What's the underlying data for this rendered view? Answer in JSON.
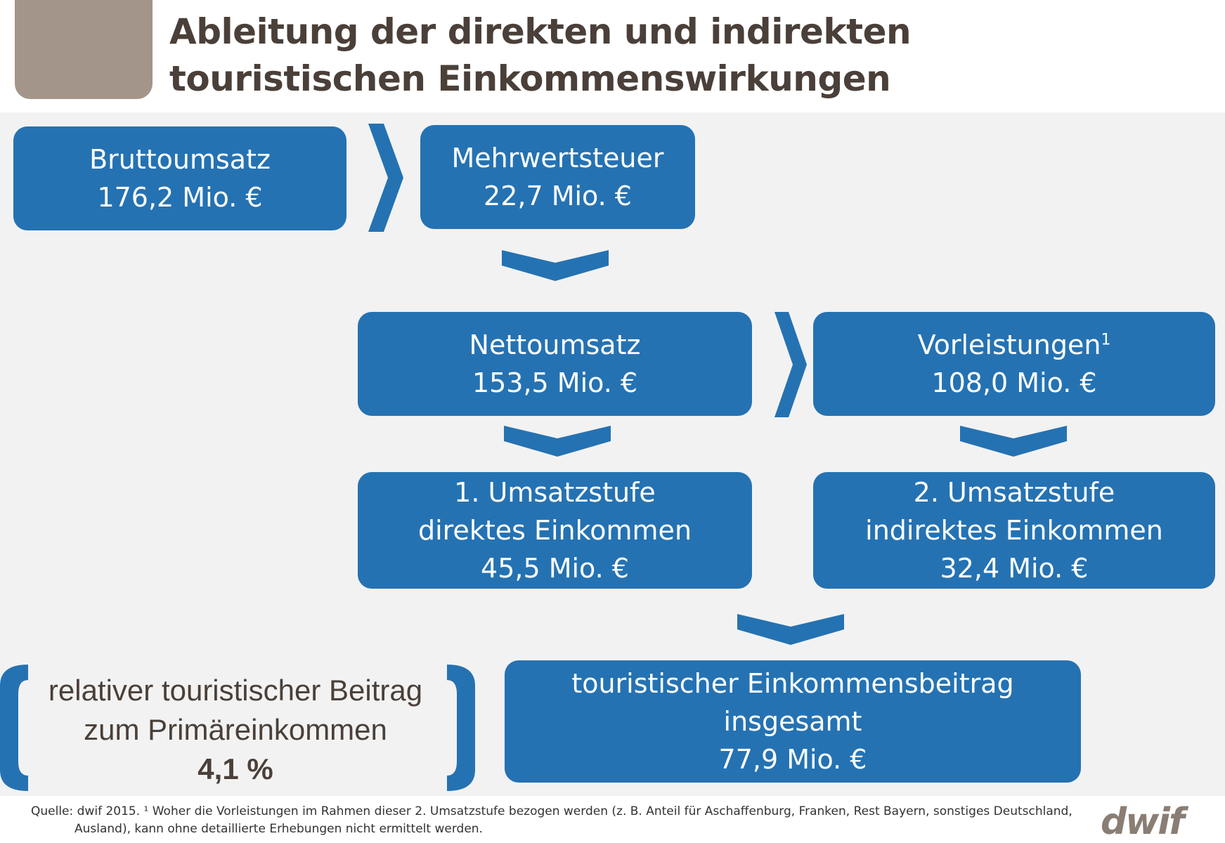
{
  "header": {
    "title_line1": "Ableitung der direkten und indirekten",
    "title_line2": "touristischen Einkommenswirkungen"
  },
  "colors": {
    "box_blue": "#2572b2",
    "panel_gray": "#f2f2f2",
    "title_brown": "#4a4039",
    "corner_block": "#a39589"
  },
  "nodes": {
    "bruttoumsatz": {
      "label": "Bruttoumsatz",
      "value": "176,2 Mio. €"
    },
    "mehrwertsteuer": {
      "label": "Mehrwertsteuer",
      "value": "22,7 Mio. €"
    },
    "nettoumsatz": {
      "label": "Nettoumsatz",
      "value": "153,5 Mio. €"
    },
    "vorleistungen": {
      "label": "Vorleistungen",
      "footnote_mark": "1",
      "value": "108,0 Mio. €"
    },
    "umsatzstufe1": {
      "label": "1. Umsatzstufe",
      "sublabel": "direktes Einkommen",
      "value": "45,5 Mio. €"
    },
    "umsatzstufe2": {
      "label": "2. Umsatzstufe",
      "sublabel": "indirektes Einkommen",
      "value": "32,4 Mio. €"
    },
    "einkommensbeitrag": {
      "label": "touristischer Einkommensbeitrag",
      "sublabel": "insgesamt",
      "value": "77,9 Mio. €"
    }
  },
  "relative": {
    "line1": "relativer touristischer Beitrag",
    "line2": "zum Primäreinkommen",
    "value": "4,1 %"
  },
  "footnote": {
    "line1": "Quelle:  dwif 2015. ¹ Woher die Vorleistungen im Rahmen dieser 2. Umsatzstufe bezogen werden (z. B. Anteil für Aschaffenburg, Franken, Rest Bayern, sonstiges Deutschland,",
    "line2": "Ausland), kann ohne detaillierte Erhebungen nicht ermittelt werden."
  },
  "logo": {
    "text": "dwif"
  }
}
